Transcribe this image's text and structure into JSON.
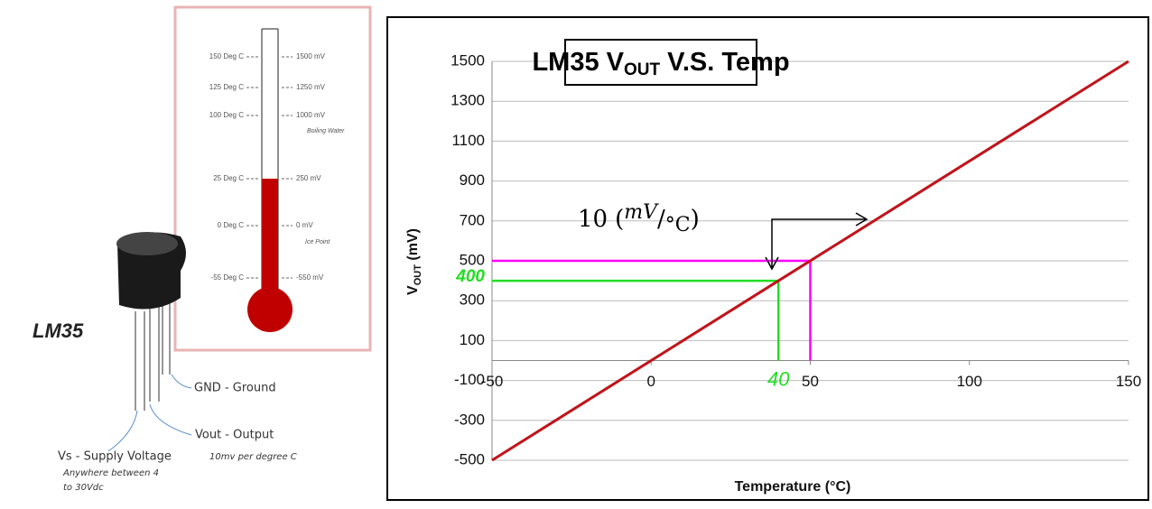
{
  "chart_data": {
    "type": "line",
    "title": [
      "LM35 V",
      "OUT",
      " V.S. Temp"
    ],
    "x_label": "Temperature (°C)",
    "y_label": [
      "V",
      "OUT",
      " (mV)"
    ],
    "x": [
      -50,
      150
    ],
    "values": [
      -500,
      1500
    ],
    "color": "#c0141b",
    "xlim": [
      -50,
      150
    ],
    "xticks": [
      -50,
      0,
      50,
      100,
      150
    ],
    "ylim": [
      -500,
      1500
    ],
    "yticks": [
      -500,
      -300,
      -100,
      100,
      300,
      500,
      700,
      900,
      1100,
      1300,
      1500
    ],
    "grid": true,
    "guides": [
      {
        "color": "#ff00ff",
        "x": 50,
        "y": 500
      },
      {
        "color": "#22dd22",
        "x": 40,
        "y": 400
      }
    ],
    "slope_annotation": {
      "number": "10",
      "unit": "mV",
      "per": "°C"
    }
  },
  "diagram": {
    "part": "LM35",
    "pins": [
      "GND - Ground",
      "Vout - Output",
      "Vs - Supply Voltage"
    ],
    "notes": [
      "10mv per degree C",
      "Anywhere between 4",
      "to 30Vdc"
    ],
    "thermometer": [
      {
        "temp": "150 Deg C",
        "voltage": "1500 mV"
      },
      {
        "temp": "125 Deg C",
        "voltage": "1250 mV"
      },
      {
        "temp": "100 Deg C",
        "voltage": "1000 mV",
        "note": "Boiling Water"
      },
      {
        "temp": "25 Deg C",
        "voltage": "250 mV"
      },
      {
        "temp": "0 Deg C",
        "voltage": "0 mV",
        "note": "Ice Point"
      },
      {
        "temp": "-55 Deg C",
        "voltage": "-550 mV"
      }
    ]
  }
}
